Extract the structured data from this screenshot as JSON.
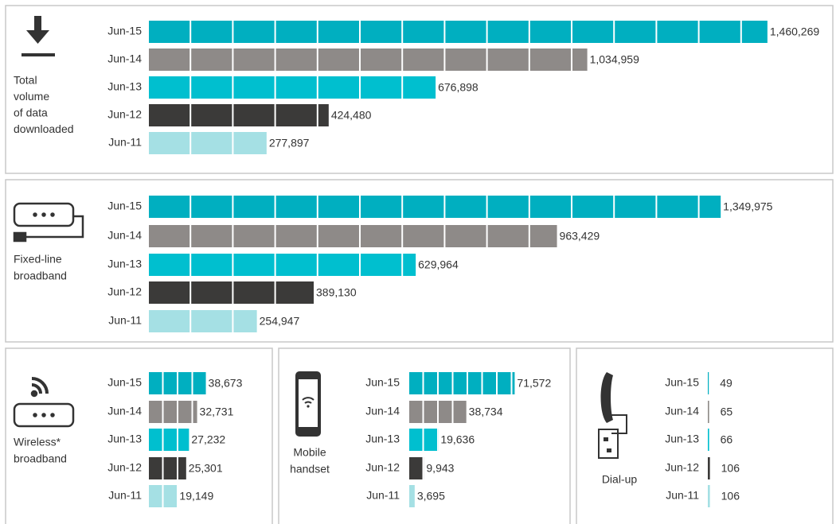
{
  "chart_data": [
    {
      "type": "bar",
      "label_lines": [
        "Total",
        "volume",
        "of data",
        "downloaded"
      ],
      "categories": [
        "Jun-15",
        "Jun-14",
        "Jun-13",
        "Jun-12",
        "Jun-11"
      ],
      "values": [
        1460269,
        1034959,
        676898,
        424480,
        277897
      ],
      "value_labels": [
        "1,460,269",
        "1,034,959",
        "676,898",
        "424,480",
        "277,897"
      ],
      "colors": [
        "#00afc0",
        "#8e8a88",
        "#00bfcf",
        "#3b3a39",
        "#a5e0e4"
      ],
      "xlim": [
        0,
        1500000
      ]
    },
    {
      "type": "bar",
      "label_lines": [
        "Fixed-line",
        "broadband"
      ],
      "categories": [
        "Jun-15",
        "Jun-14",
        "Jun-13",
        "Jun-12",
        "Jun-11"
      ],
      "values": [
        1349975,
        963429,
        629964,
        389130,
        254947
      ],
      "value_labels": [
        "1,349,975",
        "963,429",
        "629,964",
        "389,130",
        "254,947"
      ],
      "colors": [
        "#00afc0",
        "#8e8a88",
        "#00bfcf",
        "#3b3a39",
        "#a5e0e4"
      ],
      "xlim": [
        0,
        1500000
      ]
    },
    {
      "type": "bar",
      "label_lines": [
        "Wireless*",
        "broadband"
      ],
      "categories": [
        "Jun-15",
        "Jun-14",
        "Jun-13",
        "Jun-12",
        "Jun-11"
      ],
      "values": [
        38673,
        32731,
        27232,
        25301,
        19149
      ],
      "value_labels": [
        "38,673",
        "32,731",
        "27,232",
        "25,301",
        "19,149"
      ],
      "colors": [
        "#00afc0",
        "#8e8a88",
        "#00bfcf",
        "#3b3a39",
        "#a5e0e4"
      ],
      "xlim": [
        0,
        50000
      ]
    },
    {
      "type": "bar",
      "label_lines": [
        "Mobile",
        "handset"
      ],
      "categories": [
        "Jun-15",
        "Jun-14",
        "Jun-13",
        "Jun-12",
        "Jun-11"
      ],
      "values": [
        71572,
        38734,
        19636,
        9943,
        3695
      ],
      "value_labels": [
        "71,572",
        "38,734",
        "19,636",
        "9,943",
        "3,695"
      ],
      "colors": [
        "#00afc0",
        "#8e8a88",
        "#00bfcf",
        "#3b3a39",
        "#a5e0e4"
      ],
      "xlim": [
        0,
        80000
      ]
    },
    {
      "type": "bar",
      "label_lines": [
        "Dial-up"
      ],
      "categories": [
        "Jun-15",
        "Jun-14",
        "Jun-13",
        "Jun-12",
        "Jun-11"
      ],
      "values": [
        49,
        65,
        66,
        106,
        106
      ],
      "colors": [
        "#00afc0",
        "#8e8a88",
        "#00bfcf",
        "#3b3a39",
        "#a5e0e4"
      ],
      "xlim": [
        0,
        4000
      ]
    }
  ]
}
